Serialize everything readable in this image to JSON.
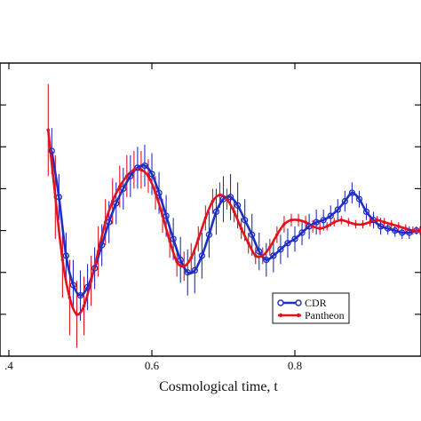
{
  "chart_data": {
    "type": "line",
    "title": "",
    "xlabel": "Cosmological time, t",
    "ylabel": "",
    "xlim": [
      0.4,
      1.0
    ],
    "ylim": [
      -3.0,
      4.0
    ],
    "x_ticks": [
      0.4,
      0.6,
      0.8
    ],
    "x_tick_labels": [
      ".4",
      "0.6",
      "0.8"
    ],
    "y_ticks": [
      -3,
      -2,
      -1,
      0,
      1,
      2,
      3,
      4
    ],
    "grid": false,
    "legend_position": "lower-right",
    "series": [
      {
        "name": "CDR",
        "color": "#1f2fc4",
        "marker": "open-circle",
        "x": [
          0.46,
          0.47,
          0.48,
          0.49,
          0.5,
          0.51,
          0.52,
          0.53,
          0.54,
          0.55,
          0.56,
          0.57,
          0.58,
          0.59,
          0.6,
          0.61,
          0.62,
          0.63,
          0.64,
          0.65,
          0.66,
          0.67,
          0.68,
          0.69,
          0.7,
          0.71,
          0.72,
          0.73,
          0.74,
          0.75,
          0.76,
          0.77,
          0.78,
          0.79,
          0.8,
          0.81,
          0.82,
          0.83,
          0.84,
          0.85,
          0.86,
          0.87,
          0.88,
          0.89,
          0.9,
          0.91,
          0.92,
          0.93,
          0.94,
          0.95,
          0.96,
          0.97,
          0.98,
          0.99,
          1.0
        ],
        "y": [
          1.9,
          0.8,
          -0.6,
          -1.3,
          -1.55,
          -1.35,
          -0.9,
          -0.35,
          0.2,
          0.65,
          1.0,
          1.3,
          1.5,
          1.55,
          1.35,
          0.9,
          0.35,
          -0.2,
          -0.7,
          -1.0,
          -0.95,
          -0.6,
          -0.1,
          0.45,
          0.75,
          0.8,
          0.6,
          0.25,
          -0.1,
          -0.5,
          -0.7,
          -0.6,
          -0.45,
          -0.3,
          -0.2,
          -0.05,
          0.1,
          0.2,
          0.25,
          0.35,
          0.5,
          0.7,
          0.9,
          0.75,
          0.45,
          0.25,
          0.1,
          0.05,
          0.0,
          -0.05,
          -0.05,
          0.0,
          0.0,
          0.0,
          0.0
        ],
        "error": [
          0.55,
          0.55,
          0.55,
          0.6,
          0.6,
          0.55,
          0.5,
          0.5,
          0.5,
          0.5,
          0.5,
          0.5,
          0.5,
          0.5,
          0.5,
          0.5,
          0.5,
          0.5,
          0.55,
          0.55,
          0.55,
          0.55,
          0.55,
          0.55,
          0.55,
          0.55,
          0.55,
          0.5,
          0.5,
          0.45,
          0.4,
          0.4,
          0.35,
          0.35,
          0.3,
          0.3,
          0.3,
          0.3,
          0.25,
          0.25,
          0.25,
          0.25,
          0.25,
          0.2,
          0.2,
          0.2,
          0.2,
          0.15,
          0.15,
          0.15,
          0.15,
          0.1,
          0.1,
          0.1,
          0.1
        ]
      },
      {
        "name": "Pantheon",
        "color": "#e0141e",
        "marker": "filled-dot",
        "x": [
          0.455,
          0.465,
          0.475,
          0.485,
          0.495,
          0.505,
          0.515,
          0.525,
          0.535,
          0.545,
          0.555,
          0.565,
          0.575,
          0.585,
          0.595,
          0.605,
          0.615,
          0.625,
          0.635,
          0.645,
          0.655,
          0.665,
          0.675,
          0.685,
          0.695,
          0.705,
          0.715,
          0.725,
          0.735,
          0.745,
          0.755,
          0.765,
          0.775,
          0.785,
          0.795,
          0.805,
          0.815,
          0.825,
          0.835,
          0.845,
          0.855,
          0.865,
          0.875,
          0.885,
          0.895,
          0.905,
          0.915,
          0.925,
          0.935,
          0.945,
          0.955,
          0.965,
          0.975,
          0.985,
          0.995
        ],
        "y": [
          2.4,
          0.8,
          -0.7,
          -1.6,
          -2.0,
          -1.8,
          -1.2,
          -0.5,
          0.2,
          0.7,
          1.05,
          1.3,
          1.45,
          1.45,
          1.3,
          0.9,
          0.35,
          -0.25,
          -0.75,
          -0.85,
          -0.65,
          -0.2,
          0.3,
          0.7,
          0.85,
          0.75,
          0.45,
          0.05,
          -0.3,
          -0.6,
          -0.6,
          -0.4,
          -0.1,
          0.15,
          0.25,
          0.25,
          0.2,
          0.1,
          0.05,
          0.1,
          0.2,
          0.25,
          0.2,
          0.15,
          0.15,
          0.2,
          0.25,
          0.2,
          0.15,
          0.1,
          0.05,
          0.0,
          0.0,
          0.0,
          0.0
        ],
        "error": [
          1.1,
          1.0,
          0.9,
          0.9,
          0.8,
          0.7,
          0.6,
          0.6,
          0.55,
          0.55,
          0.5,
          0.5,
          0.45,
          0.45,
          0.4,
          0.4,
          0.4,
          0.4,
          0.35,
          0.35,
          0.35,
          0.3,
          0.3,
          0.3,
          0.3,
          0.25,
          0.25,
          0.25,
          0.25,
          0.2,
          0.2,
          0.2,
          0.2,
          0.2,
          0.15,
          0.15,
          0.15,
          0.15,
          0.15,
          0.1,
          0.1,
          0.1,
          0.1,
          0.1,
          0.1,
          0.1,
          0.1,
          0.1,
          0.1,
          0.1,
          0.1,
          0.1,
          0.1,
          0.1,
          0.1
        ]
      }
    ]
  }
}
